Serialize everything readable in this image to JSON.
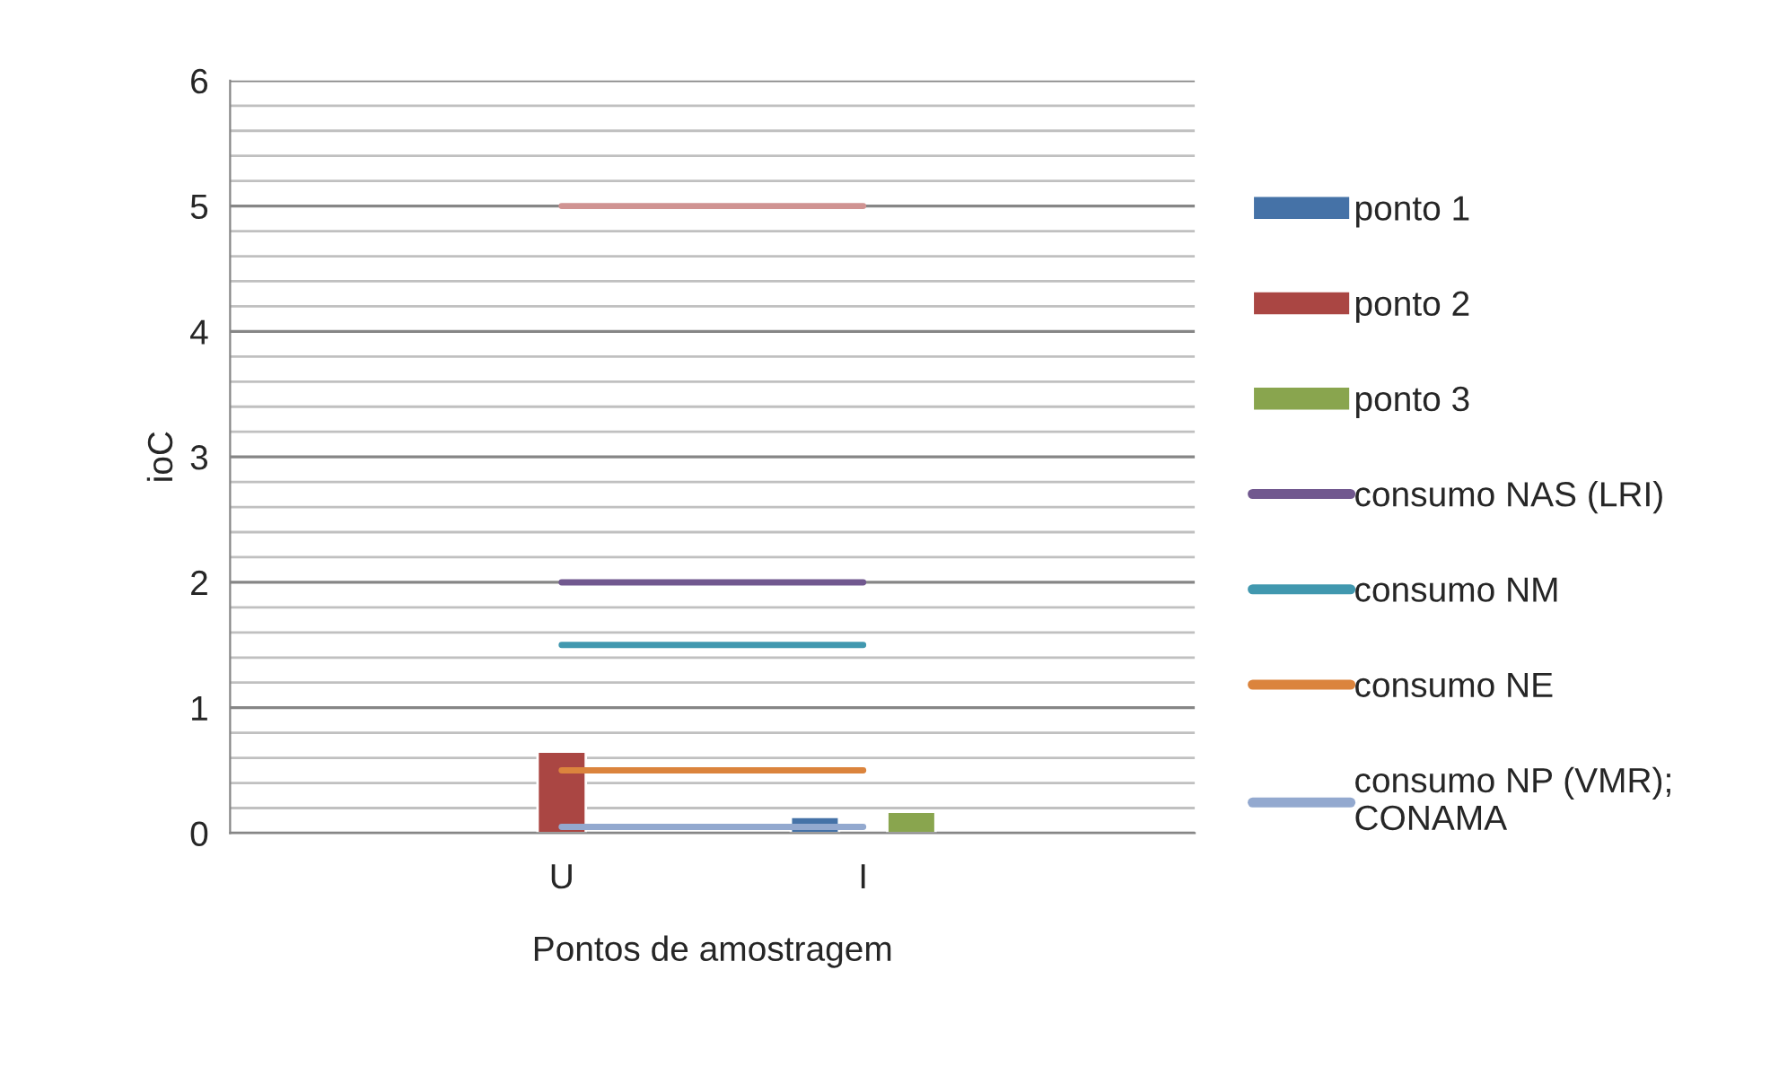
{
  "chart_data": {
    "type": "bar",
    "xlabel": "Pontos de amostragem",
    "ylabel": "ioC",
    "categories": [
      "U",
      "I"
    ],
    "series": [
      {
        "name": "ponto 1",
        "color": "#4572a7",
        "values": [
          null,
          0.13
        ]
      },
      {
        "name": "ponto 2",
        "color": "#aa4643",
        "values": [
          0.65,
          null
        ]
      },
      {
        "name": "ponto 3",
        "color": "#89a54e",
        "values": [
          null,
          0.17
        ]
      },
      {
        "name": "consumo NAS (LRI)",
        "type": "line",
        "color": "#71588f",
        "values": [
          2,
          2
        ]
      },
      {
        "name": "consumo NM",
        "type": "line",
        "color": "#4198af",
        "values": [
          1.5,
          1.5
        ]
      },
      {
        "name": "consumo NE",
        "type": "line",
        "color": "#db843d",
        "values": [
          0.5,
          0.5
        ]
      },
      {
        "name": "consumo NP (VMR);\nCONAMA",
        "type": "line",
        "color": "#93a9cf",
        "values": [
          0.05,
          0.05
        ]
      },
      {
        "type": "line",
        "color": "#d09392",
        "values": [
          5,
          5
        ]
      }
    ],
    "ylim": [
      0,
      6
    ],
    "yticks": [
      0,
      1,
      2,
      3,
      4,
      5,
      6
    ],
    "grid": "y",
    "legend": "right",
    "marker": "none",
    "line_style": "solid"
  }
}
